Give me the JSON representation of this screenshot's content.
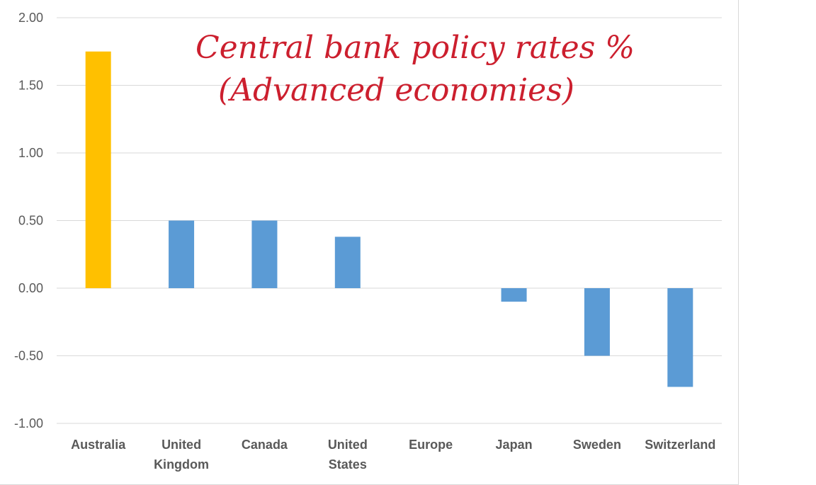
{
  "chart_data": {
    "type": "bar",
    "title_lines": [
      "Central bank policy rates %",
      "(Advanced economies)"
    ],
    "categories": [
      [
        "Australia"
      ],
      [
        "United",
        "Kingdom"
      ],
      [
        "Canada"
      ],
      [
        "United",
        "States"
      ],
      [
        "Europe"
      ],
      [
        "Japan"
      ],
      [
        "Sweden"
      ],
      [
        "Switzerland"
      ]
    ],
    "values": [
      1.75,
      0.5,
      0.5,
      0.38,
      0.0,
      -0.1,
      -0.5,
      -0.73
    ],
    "colors": [
      "#ffc000",
      "#5b9bd5",
      "#5b9bd5",
      "#5b9bd5",
      "#5b9bd5",
      "#5b9bd5",
      "#5b9bd5",
      "#5b9bd5"
    ],
    "ylim": [
      -1.0,
      2.0
    ],
    "yticks": [
      "2.00",
      "1.50",
      "1.00",
      "0.50",
      "0.00",
      "-0.50",
      "-1.00"
    ],
    "ytick_values": [
      2.0,
      1.5,
      1.0,
      0.5,
      0.0,
      -0.5,
      -1.0
    ],
    "grid": true,
    "legend": "none",
    "gridline_color": "#d9d9d9"
  }
}
